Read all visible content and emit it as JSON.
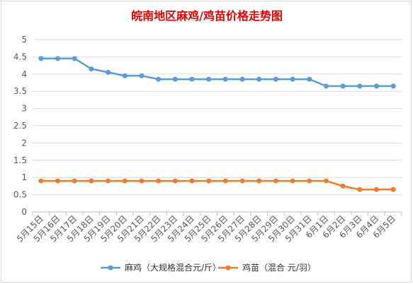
{
  "chart_data": {
    "type": "line",
    "title": "皖南地区麻鸡/鸡苗价格走势图",
    "title_color": "#e00000",
    "categories": [
      "5月15日",
      "5月16日",
      "5月17日",
      "5月18日",
      "5月19日",
      "5月20日",
      "5月21日",
      "5月22日",
      "5月23日",
      "5月24日",
      "5月25日",
      "5月26日",
      "5月27日",
      "5月28日",
      "5月29日",
      "5月30日",
      "5月31日",
      "6月1日",
      "6月2日",
      "6月3日",
      "6月4日",
      "6月5日"
    ],
    "ylim": [
      0,
      5
    ],
    "yticks": [
      "0",
      "0.5",
      "1",
      "1.5",
      "2",
      "2.5",
      "3",
      "3.5",
      "4",
      "4.5",
      "5"
    ],
    "grid": true,
    "legend_position": "bottom",
    "series": [
      {
        "name": "麻鸡（大规格混合元/斤）",
        "color": "#5b9bd5",
        "values": [
          4.45,
          4.45,
          4.45,
          4.15,
          4.05,
          3.95,
          3.95,
          3.85,
          3.85,
          3.85,
          3.85,
          3.85,
          3.85,
          3.85,
          3.85,
          3.85,
          3.85,
          3.65,
          3.65,
          3.65,
          3.65,
          3.65
        ]
      },
      {
        "name": "鸡苗（混合 元/羽）",
        "color": "#ed7d31",
        "values": [
          0.9,
          0.9,
          0.9,
          0.9,
          0.9,
          0.9,
          0.9,
          0.9,
          0.9,
          0.9,
          0.9,
          0.9,
          0.9,
          0.9,
          0.9,
          0.9,
          0.9,
          0.9,
          0.75,
          0.65,
          0.65,
          0.65
        ]
      }
    ]
  }
}
